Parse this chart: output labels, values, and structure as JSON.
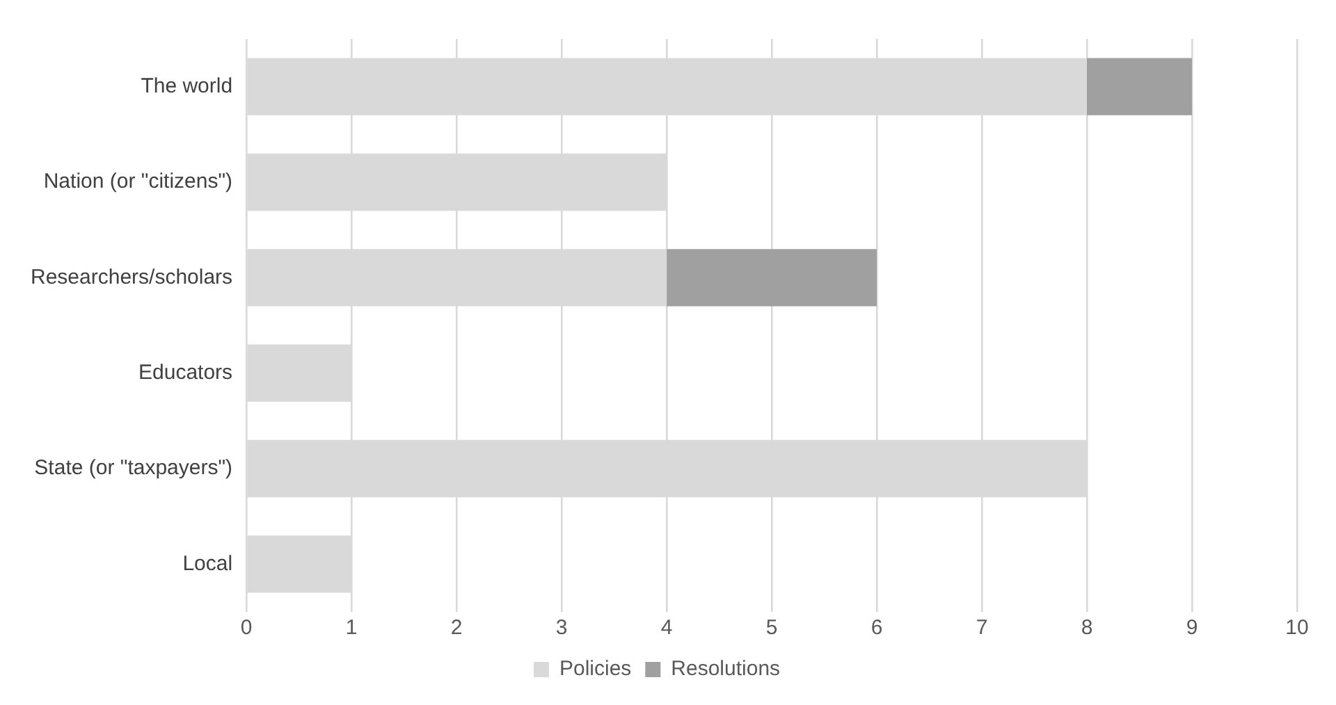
{
  "chart_data": {
    "type": "bar",
    "orientation": "horizontal",
    "stacked": true,
    "categories": [
      "The world",
      "Nation (or \"citizens\")",
      "Researchers/scholars",
      "Educators",
      "State (or \"taxpayers\")",
      "Local"
    ],
    "series": [
      {
        "name": "Policies",
        "color": "#d9d9d9",
        "values": [
          8,
          4,
          4,
          1,
          8,
          1
        ]
      },
      {
        "name": "Resolutions",
        "color": "#a0a0a0",
        "values": [
          1,
          null,
          2,
          null,
          null,
          null
        ]
      }
    ],
    "xlim": [
      0,
      10
    ],
    "xticks": [
      0,
      1,
      2,
      3,
      4,
      5,
      6,
      7,
      8,
      9,
      10
    ],
    "grid": "x",
    "legend": "bottom"
  }
}
